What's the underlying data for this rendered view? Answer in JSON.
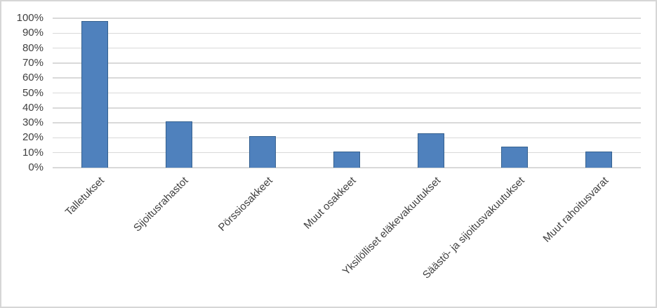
{
  "chart_data": {
    "type": "bar",
    "title": "",
    "xlabel": "",
    "ylabel": "",
    "categories": [
      "Talletukset",
      "Sijoitusrahastot",
      "Pörssiosakkeet",
      "Muut osakkeet",
      "Yksilölliset eläkevakuutukset",
      "Säästö- ja sijoitusvakuutukset",
      "Muut rahoitusvarat"
    ],
    "values": [
      98,
      31,
      21,
      11,
      23,
      14,
      11
    ],
    "ylim": [
      0,
      100
    ],
    "ytick_step": 10,
    "ytick_labels": [
      "0%",
      "10%",
      "20%",
      "30%",
      "40%",
      "50%",
      "60%",
      "70%",
      "80%",
      "90%",
      "100%"
    ],
    "grid": true,
    "legend": false,
    "colors": {
      "bar_fill": "#4f81bd",
      "bar_border": "#35618f",
      "gridline": "#d9d9d9",
      "axis_text": "#404040",
      "chart_border": "#d6d6d6",
      "background": "#ffffff"
    }
  }
}
